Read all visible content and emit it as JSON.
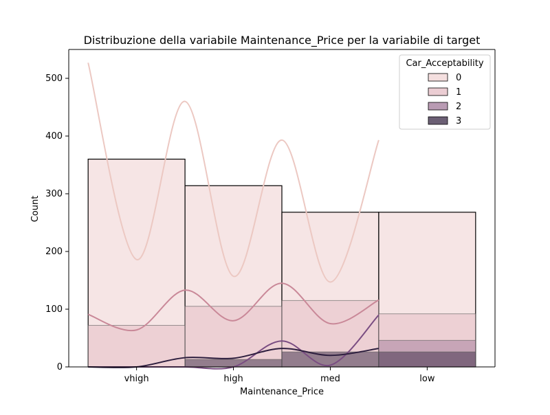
{
  "chart_data": {
    "type": "bar",
    "title": "Distribuzione della variabile Maintenance_Price per la variabile di target",
    "xlabel": "Maintenance_Price",
    "ylabel": "Count",
    "categories": [
      "vhigh",
      "high",
      "med",
      "low"
    ],
    "ylim": [
      0,
      550
    ],
    "yticks": [
      0,
      100,
      200,
      300,
      400,
      500
    ],
    "grid": false,
    "legend": {
      "title": "Car_Acceptability",
      "placement": "top-right"
    },
    "series": [
      {
        "name": "0",
        "values": [
          360,
          314,
          268,
          268
        ],
        "color": "#f3dcdc",
        "kde_color": "#ecc8c2",
        "kde": [
          [
            -0.5,
            527
          ],
          [
            0.0,
            186
          ],
          [
            0.5,
            460
          ],
          [
            1.0,
            157
          ],
          [
            1.5,
            393
          ],
          [
            2.0,
            147
          ],
          [
            2.5,
            393
          ]
        ]
      },
      {
        "name": "1",
        "values": [
          72,
          105,
          115,
          92
        ],
        "color": "#e4bcc4",
        "kde_color": "#c98898",
        "kde": [
          [
            -0.5,
            91
          ],
          [
            0.0,
            64
          ],
          [
            0.5,
            133
          ],
          [
            1.0,
            80
          ],
          [
            1.5,
            145
          ],
          [
            2.0,
            75
          ],
          [
            2.5,
            116
          ]
        ]
      },
      {
        "name": "2",
        "values": [
          0,
          0,
          0,
          46
        ],
        "color": "#a27a99",
        "kde_color": "#7a4d82",
        "kde": [
          [
            -0.5,
            0
          ],
          [
            0.0,
            0
          ],
          [
            0.5,
            0
          ],
          [
            1.0,
            0
          ],
          [
            1.5,
            45
          ],
          [
            2.0,
            3
          ],
          [
            2.5,
            90
          ]
        ]
      },
      {
        "name": "3",
        "values": [
          0,
          13,
          26,
          26
        ],
        "color": "#3a2a45",
        "kde_color": "#2d1e3e",
        "kde": [
          [
            -0.5,
            0
          ],
          [
            0.0,
            0
          ],
          [
            0.5,
            16
          ],
          [
            1.0,
            15
          ],
          [
            1.5,
            32
          ],
          [
            2.0,
            20
          ],
          [
            2.5,
            32
          ]
        ]
      }
    ]
  }
}
